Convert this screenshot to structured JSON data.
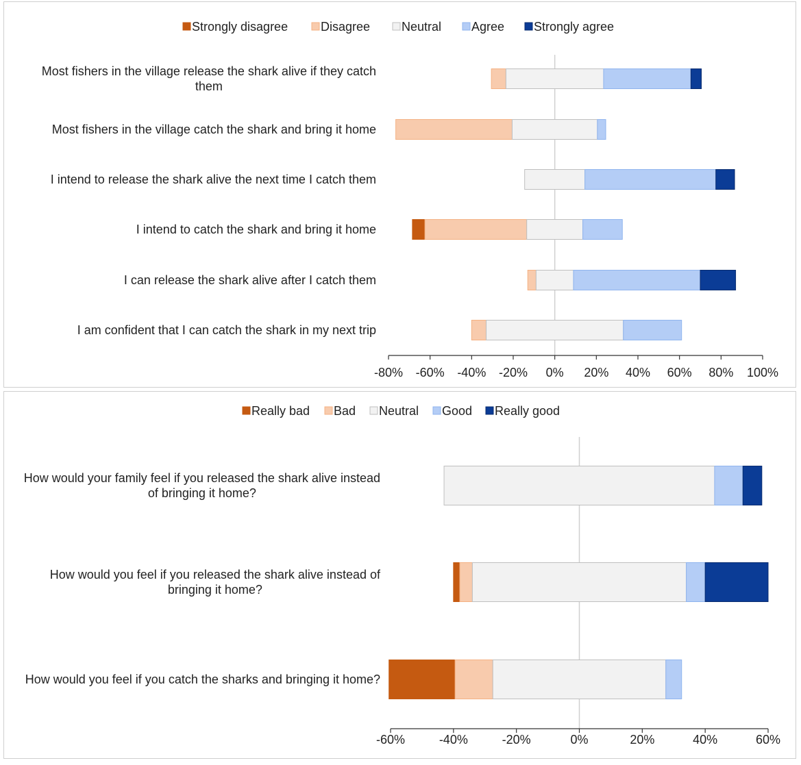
{
  "chart_data": [
    {
      "type": "bar",
      "subtype": "diverging-stacked-horizontal",
      "title": "",
      "xlabel": "",
      "ylabel": "",
      "xlim": [
        -0.8,
        1.0
      ],
      "ticks": [
        -0.8,
        -0.6,
        -0.4,
        -0.2,
        0,
        0.2,
        0.4,
        0.6,
        0.8,
        1.0
      ],
      "tick_labels": [
        "-80%",
        "-60%",
        "-40%",
        "-20%",
        "0%",
        "20%",
        "40%",
        "60%",
        "80%",
        "100%"
      ],
      "legend_position": "top-center",
      "legend": [
        {
          "name": "Strongly disagree",
          "color": "#c55a11"
        },
        {
          "name": "Disagree",
          "color": "#f8cbad"
        },
        {
          "name": "Neutral",
          "color": "#f2f2f2"
        },
        {
          "name": "Agree",
          "color": "#b4cdf6"
        },
        {
          "name": "Strongly agree",
          "color": "#0b3c96"
        }
      ],
      "items": [
        {
          "label_lines": [
            "Most fishers in the village release the shark alive if they catch",
            "them"
          ],
          "values": [
            0,
            0.07,
            0.47,
            0.42,
            0.05
          ]
        },
        {
          "label_lines": [
            "Most fishers in the village catch the shark and bring it home"
          ],
          "values": [
            0,
            0.56,
            0.41,
            0.04,
            0
          ]
        },
        {
          "label_lines": [
            "I intend to release the shark alive the next time I catch them"
          ],
          "values": [
            0,
            0,
            0.29,
            0.63,
            0.09
          ]
        },
        {
          "label_lines": [
            "I intend to catch the shark and bring it home"
          ],
          "values": [
            0.06,
            0.49,
            0.27,
            0.19,
            0
          ]
        },
        {
          "label_lines": [
            "I can release the shark alive after I catch them"
          ],
          "values": [
            0,
            0.04,
            0.18,
            0.61,
            0.17
          ]
        },
        {
          "label_lines": [
            "I am confident that I can catch the shark in my next trip"
          ],
          "values": [
            0,
            0.07,
            0.66,
            0.28,
            0
          ]
        }
      ]
    },
    {
      "type": "bar",
      "subtype": "diverging-stacked-horizontal",
      "title": "",
      "xlabel": "",
      "ylabel": "",
      "xlim": [
        -0.6,
        0.6
      ],
      "ticks": [
        -0.6,
        -0.4,
        -0.2,
        0,
        0.2,
        0.4,
        0.6
      ],
      "tick_labels": [
        "-60%",
        "-40%",
        "-20%",
        "0%",
        "20%",
        "40%",
        "60%"
      ],
      "legend_position": "top-center",
      "legend": [
        {
          "name": "Really bad",
          "color": "#c55a11"
        },
        {
          "name": "Bad",
          "color": "#f8cbad"
        },
        {
          "name": "Neutral",
          "color": "#f2f2f2"
        },
        {
          "name": "Good",
          "color": "#b4cdf6"
        },
        {
          "name": "Really good",
          "color": "#0b3c96"
        }
      ],
      "items": [
        {
          "label_lines": [
            "How would your family feel if you released the shark alive instead",
            "of bringing it home?"
          ],
          "values": [
            0,
            0,
            0.86,
            0.09,
            0.06
          ]
        },
        {
          "label_lines": [
            "How would you feel if you released the shark alive instead of",
            "bringing it home?"
          ],
          "values": [
            0.02,
            0.04,
            0.68,
            0.06,
            0.2
          ]
        },
        {
          "label_lines": [
            "How would you feel if you catch the sharks and bringing it home?"
          ],
          "values": [
            0.21,
            0.12,
            0.55,
            0.05,
            0
          ]
        }
      ]
    }
  ]
}
